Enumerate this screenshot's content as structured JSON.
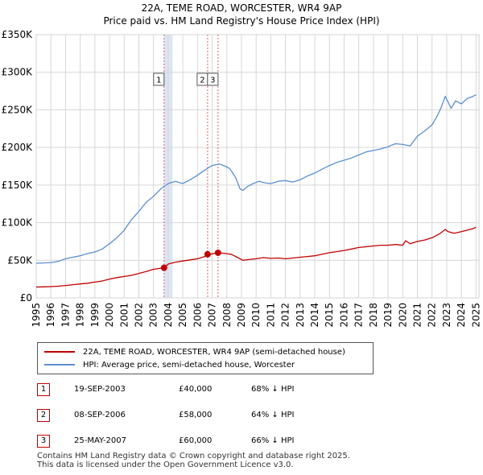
{
  "title": {
    "line1": "22A, TEME ROAD, WORCESTER, WR4 9AP",
    "line2": "Price paid vs. HM Land Registry's House Price Index (HPI)"
  },
  "legend": {
    "property_label": "22A, TEME ROAD, WORCESTER, WR4 9AP (semi-detached house)",
    "hpi_label": "HPI: Average price, semi-detached house, Worcester"
  },
  "sales": [
    {
      "marker": "1",
      "date": "19-SEP-2003",
      "price": "£40,000",
      "hpi_diff": "68% ↓ HPI"
    },
    {
      "marker": "2",
      "date": "08-SEP-2006",
      "price": "£58,000",
      "hpi_diff": "64% ↓ HPI"
    },
    {
      "marker": "3",
      "date": "25-MAY-2007",
      "price": "£60,000",
      "hpi_diff": "66% ↓ HPI"
    }
  ],
  "footer": {
    "line1": "Contains HM Land Registry data © Crown copyright and database right 2025.",
    "line2": "This data is licensed under the Open Government Licence v3.0."
  },
  "colors": {
    "property_line": "#c00000",
    "hpi_line": "#5b8fd0",
    "highlight_band": "#dde5f4",
    "vline": "#e06060"
  },
  "chart_data": {
    "type": "line",
    "title": "22A, TEME ROAD, WORCESTER, WR4 9AP — Price paid vs. HM Land Registry's House Price Index (HPI)",
    "xlabel": "",
    "ylabel": "",
    "xlim": [
      1995,
      2025.2
    ],
    "ylim": [
      0,
      350000
    ],
    "grid": true,
    "y_ticks": [
      0,
      50000,
      100000,
      150000,
      200000,
      250000,
      300000,
      350000
    ],
    "y_tick_labels": [
      "£0",
      "£50K",
      "£100K",
      "£150K",
      "£200K",
      "£250K",
      "£300K",
      "£350K"
    ],
    "x_ticks": [
      1995,
      1996,
      1997,
      1998,
      1999,
      2000,
      2001,
      2002,
      2003,
      2004,
      2005,
      2006,
      2007,
      2008,
      2009,
      2010,
      2011,
      2012,
      2013,
      2014,
      2015,
      2016,
      2017,
      2018,
      2019,
      2020,
      2021,
      2022,
      2023,
      2024,
      2025
    ],
    "highlight_band": [
      2003.72,
      2004.3
    ],
    "sale_markers": [
      {
        "label": "1",
        "x": 2003.72,
        "y": 40000
      },
      {
        "label": "2",
        "x": 2006.69,
        "y": 58000
      },
      {
        "label": "3",
        "x": 2007.4,
        "y": 60000
      }
    ],
    "series": [
      {
        "name": "HPI: Average price, semi-detached house, Worcester",
        "x": [
          1995,
          1995.5,
          1996,
          1996.5,
          1997,
          1997.5,
          1998,
          1998.5,
          1999,
          1999.5,
          2000,
          2000.5,
          2001,
          2001.5,
          2002,
          2002.5,
          2003,
          2003.5,
          2004,
          2004.5,
          2005,
          2005.5,
          2006,
          2006.5,
          2007,
          2007.5,
          2007.9,
          2008.2,
          2008.6,
          2008.9,
          2009.1,
          2009.4,
          2009.8,
          2010.2,
          2010.6,
          2011,
          2011.5,
          2012,
          2012.5,
          2013,
          2013.5,
          2014,
          2014.5,
          2015,
          2015.5,
          2016,
          2016.5,
          2017,
          2017.5,
          2018,
          2018.5,
          2019,
          2019.5,
          2020,
          2020.5,
          2021,
          2021.5,
          2022,
          2022.3,
          2022.6,
          2022.9,
          2023.1,
          2023.3,
          2023.6,
          2024,
          2024.4,
          2024.8,
          2025
        ],
        "values": [
          46000,
          46500,
          47000,
          48500,
          52000,
          54000,
          56000,
          59000,
          61000,
          65000,
          72000,
          80000,
          90000,
          104000,
          115000,
          127000,
          135000,
          145000,
          152000,
          155000,
          152000,
          157000,
          163000,
          170000,
          176000,
          178000,
          175000,
          172000,
          160000,
          145000,
          143000,
          148000,
          152000,
          155000,
          153000,
          152000,
          155000,
          156000,
          154000,
          157000,
          162000,
          166000,
          171000,
          176000,
          180000,
          183000,
          186000,
          190000,
          194000,
          196000,
          198000,
          201000,
          205000,
          204000,
          202000,
          215000,
          222000,
          230000,
          240000,
          252000,
          268000,
          260000,
          252000,
          262000,
          258000,
          265000,
          268000,
          270000
        ]
      },
      {
        "name": "22A, TEME ROAD, WORCESTER, WR4 9AP (semi-detached house)",
        "x": [
          1995,
          1995.5,
          1996,
          1996.5,
          1997,
          1997.5,
          1998,
          1998.5,
          1999,
          1999.5,
          2000,
          2000.5,
          2001,
          2001.5,
          2002,
          2002.5,
          2003,
          2003.5,
          2003.72,
          2004,
          2004.5,
          2005,
          2005.5,
          2006,
          2006.5,
          2006.69,
          2007,
          2007.4,
          2007.9,
          2008.3,
          2008.7,
          2009.1,
          2009.5,
          2010,
          2010.5,
          2011,
          2011.5,
          2012,
          2012.5,
          2013,
          2013.5,
          2014,
          2014.5,
          2015,
          2015.5,
          2016,
          2016.5,
          2017,
          2017.5,
          2018,
          2018.5,
          2019,
          2019.5,
          2020,
          2020.2,
          2020.5,
          2021,
          2021.5,
          2022,
          2022.5,
          2022.9,
          2023.1,
          2023.5,
          2024,
          2024.4,
          2024.8,
          2025
        ],
        "values": [
          14500,
          14700,
          15000,
          15500,
          16500,
          17500,
          18500,
          19500,
          21000,
          22500,
          25000,
          27000,
          28500,
          30000,
          32500,
          35000,
          38000,
          39500,
          40000,
          45000,
          47500,
          49000,
          50500,
          52000,
          55000,
          58000,
          58500,
          60000,
          59000,
          58000,
          54000,
          50000,
          51000,
          52000,
          53500,
          52500,
          53000,
          52000,
          53000,
          54000,
          55000,
          56000,
          58000,
          60000,
          61500,
          63000,
          65000,
          67000,
          68000,
          69000,
          70000,
          70000,
          71000,
          70000,
          76000,
          72000,
          75000,
          77000,
          80000,
          85000,
          91000,
          88000,
          86000,
          88000,
          90000,
          92000,
          94000
        ]
      }
    ]
  }
}
